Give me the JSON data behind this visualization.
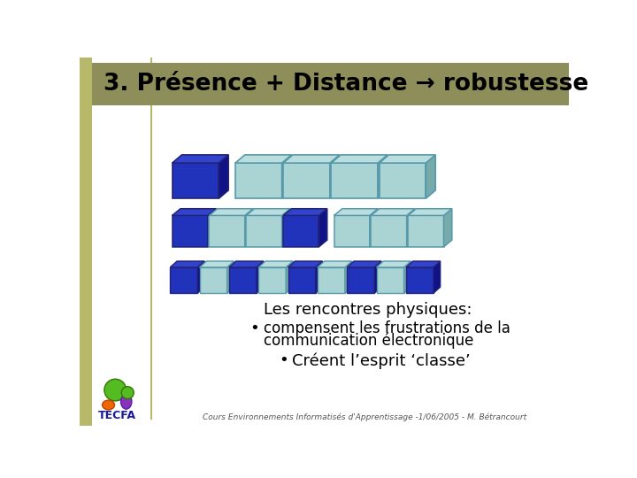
{
  "title": "3. Présence + Distance → robustesse",
  "title_bg": "#8e8e5a",
  "title_color": "#000000",
  "slide_bg": "#ffffff",
  "left_bar_color": "#b8b86a",
  "blue_color": "#2233bb",
  "light_blue_color": "#aad4d4",
  "blue_dark": "#111188",
  "light_blue_dark": "#77aaaa",
  "blue_top": "#3344cc",
  "light_blue_top": "#bbdddd",
  "text_line1": "Les rencontres physiques:",
  "text_bullet1a": "compensent les frustrations de la",
  "text_bullet1b": "communication électronique",
  "text_bullet2": "Créent l’esprit ‘classe’",
  "footer": "Cours Environnements Informatisés d'Apprentissage -1/06/2005 - M. Bétrancourt",
  "tecfa_label": "TECFA",
  "row1_colors": [
    "blue",
    "light",
    "light",
    "light",
    "light"
  ],
  "row2_colors": [
    "blue",
    "light",
    "light",
    "blue",
    "light",
    "light",
    "light"
  ],
  "row3_colors": [
    "blue",
    "light",
    "blue",
    "light",
    "blue",
    "light",
    "blue",
    "light",
    "blue"
  ]
}
